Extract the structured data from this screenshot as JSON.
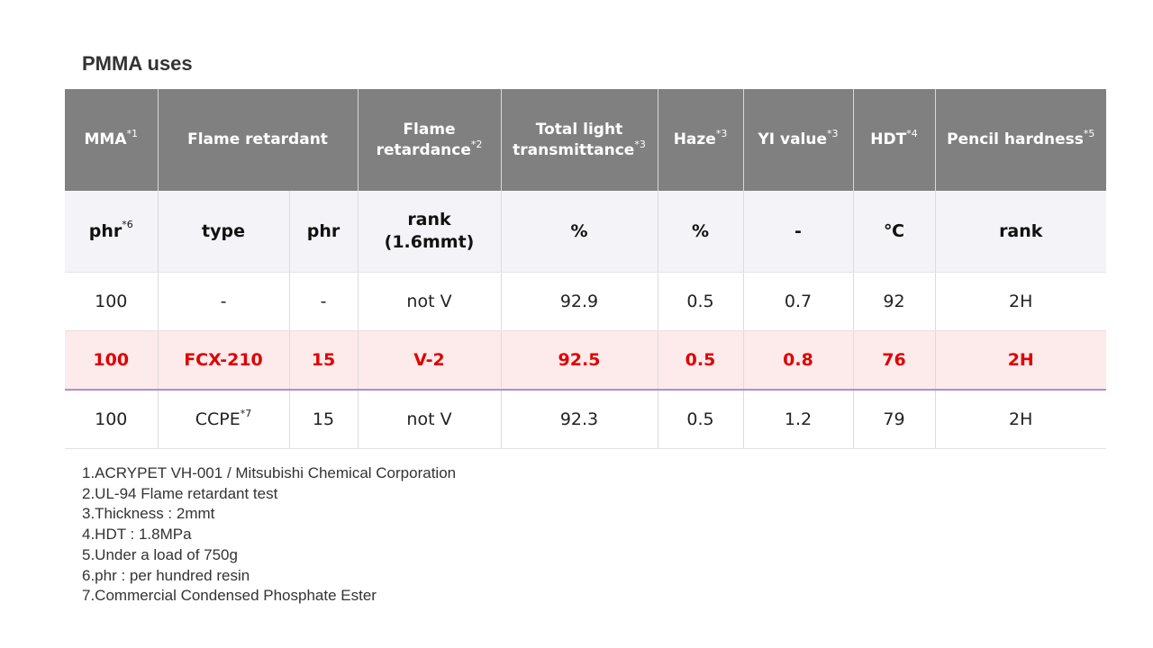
{
  "title": "PMMA uses",
  "header": {
    "mma": "MMA",
    "mma_sup": "*1",
    "flame_retardant": "Flame retardant",
    "flame_retardance_1": "Flame",
    "flame_retardance_2": "retardance",
    "flame_retardance_sup": "*2",
    "transmittance_1": "Total light",
    "transmittance_2": "transmittance",
    "transmittance_sup": "*3",
    "haze": "Haze",
    "haze_sup": "*3",
    "yi": "YI value",
    "yi_sup": "*3",
    "hdt": "HDT",
    "hdt_sup": "*4",
    "pencil": "Pencil hardness",
    "pencil_sup": "*5"
  },
  "units": {
    "mma": "phr",
    "mma_sup": "*6",
    "type": "type",
    "phr": "phr",
    "rank_1": "rank",
    "rank_2": "(1.6mmt)",
    "transmittance": "%",
    "haze": "%",
    "yi": "-",
    "hdt": "℃",
    "pencil": "rank"
  },
  "rows": [
    {
      "mma": "100",
      "type": "-",
      "type_sup": "",
      "phr": "-",
      "rank": "not V",
      "transmittance": "92.9",
      "haze": "0.5",
      "yi": "0.7",
      "hdt": "92",
      "pencil": "2H"
    },
    {
      "mma": "100",
      "type": "FCX-210",
      "type_sup": "",
      "phr": "15",
      "rank": "V-2",
      "transmittance": "92.5",
      "haze": "0.5",
      "yi": "0.8",
      "hdt": "76",
      "pencil": "2H"
    },
    {
      "mma": "100",
      "type": "CCPE",
      "type_sup": "*7",
      "phr": "15",
      "rank": "not V",
      "transmittance": "92.3",
      "haze": "0.5",
      "yi": "1.2",
      "hdt": "79",
      "pencil": "2H"
    }
  ],
  "notes": [
    "1.ACRYPET VH-001 / Mitsubishi Chemical Corporation",
    "2.UL-94 Flame retardant test",
    "3.Thickness : 2mmt",
    "4.HDT : 1.8MPa",
    "5.Under a load of 750g",
    "6.phr : per hundred resin",
    "7.Commercial Condensed Phosphate Ester"
  ],
  "colors": {
    "header_bg": "#808080",
    "highlight_text": "#e00000",
    "highlight_bg": "#fdeaea"
  }
}
